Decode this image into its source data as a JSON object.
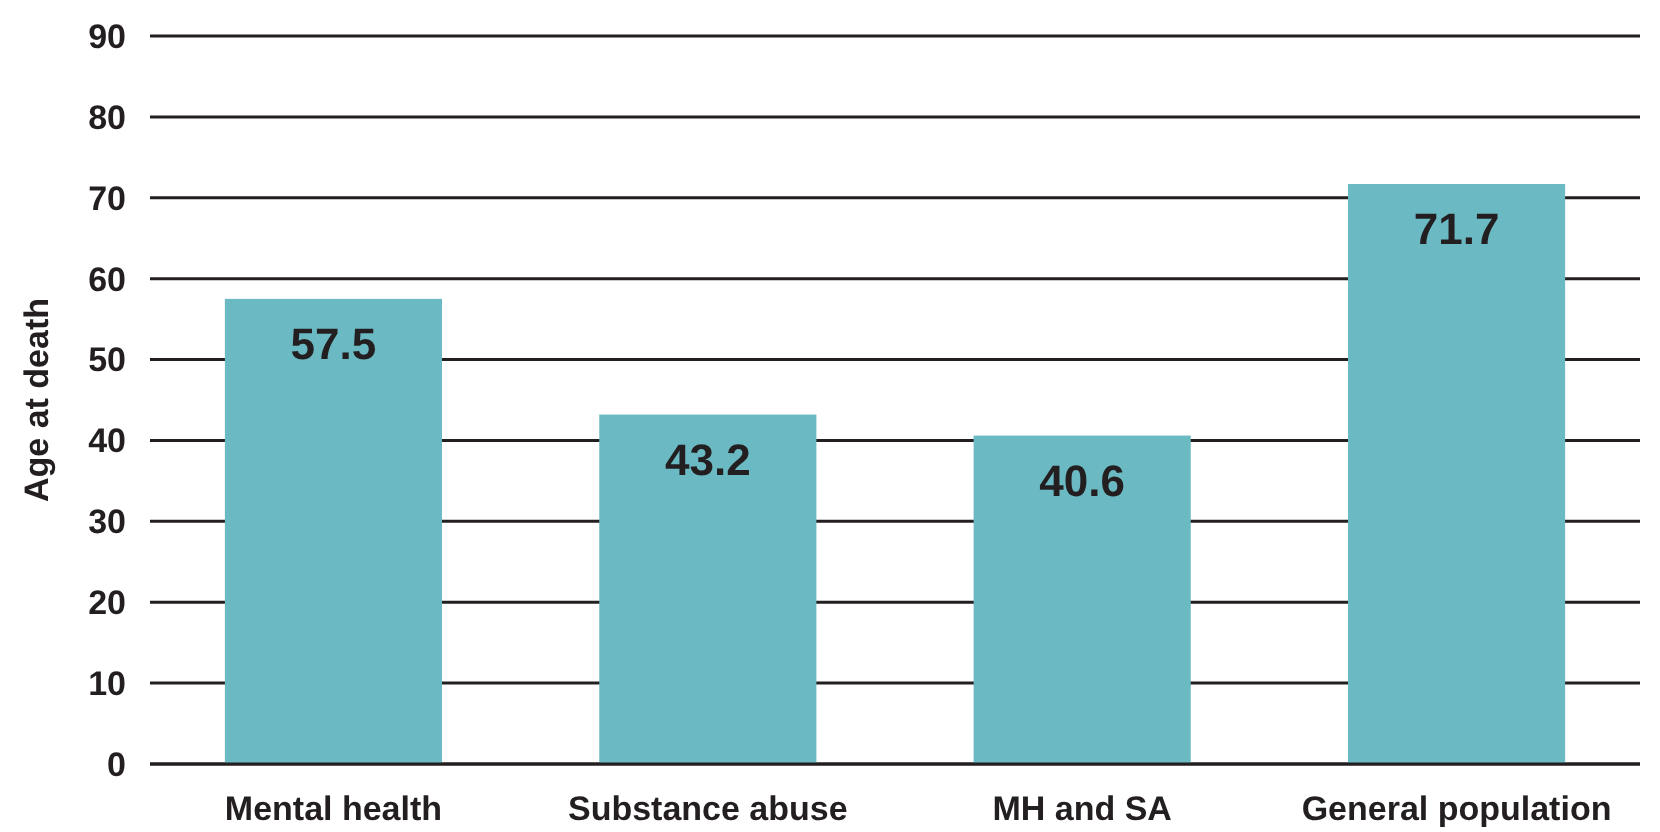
{
  "chart_data": {
    "type": "bar",
    "ylabel": "Age at death",
    "categories": [
      "Mental health",
      "Substance abuse",
      "MH and SA",
      "General population"
    ],
    "values": [
      57.5,
      43.2,
      40.6,
      71.7
    ],
    "color": "#6bbac3",
    "ylim": [
      0,
      90
    ],
    "yticks": [
      0,
      10,
      20,
      30,
      40,
      50,
      60,
      70,
      80,
      90
    ],
    "grid": "y",
    "data_labels": true
  }
}
